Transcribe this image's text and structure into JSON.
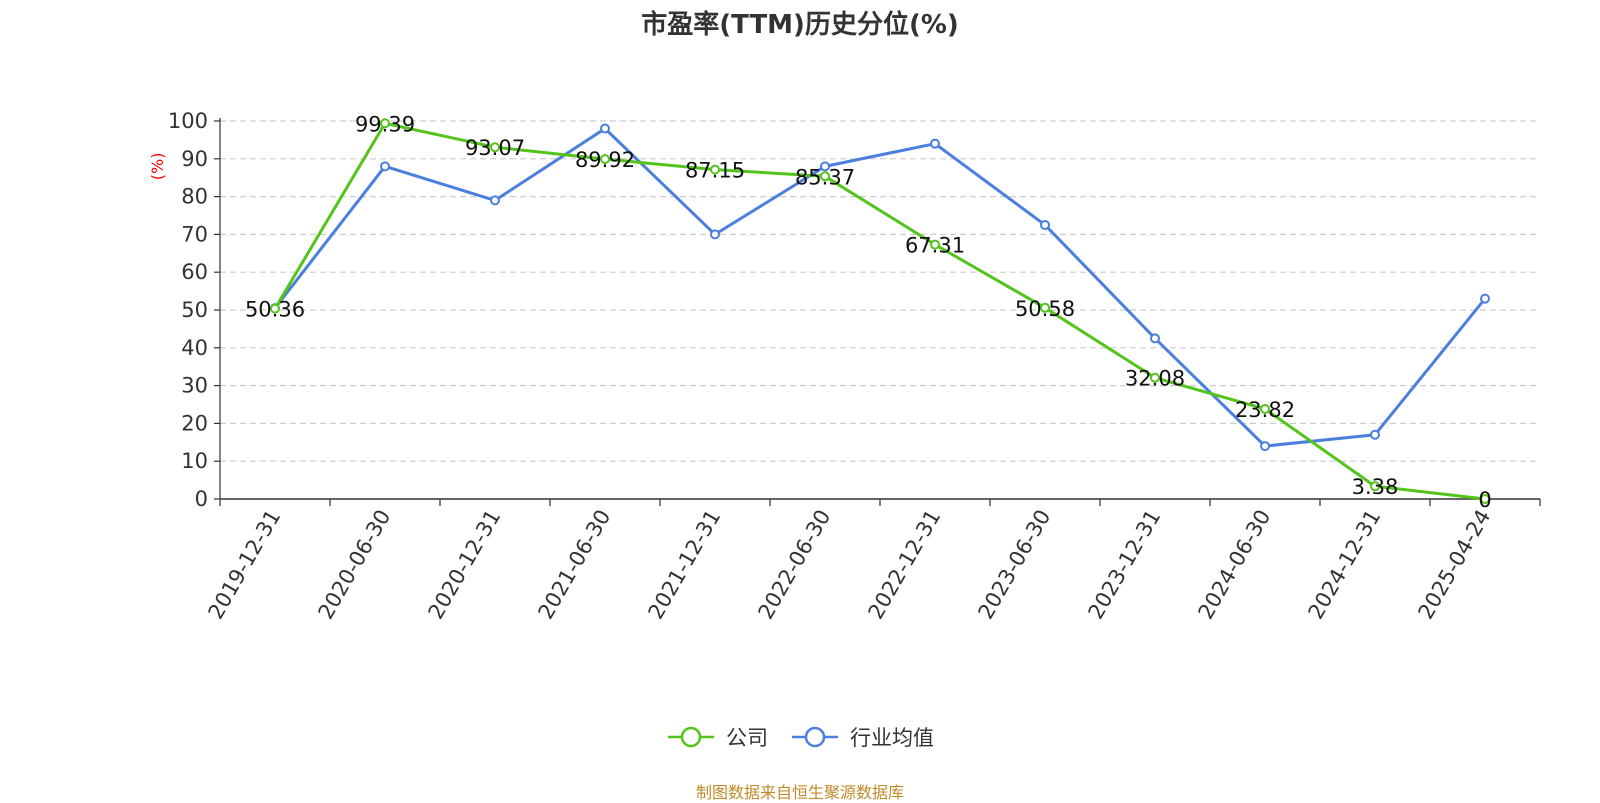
{
  "title": "市盈率(TTM)历史分位(%)",
  "source": "制图数据来自恒生聚源数据库",
  "colors": {
    "company": "#52c41a",
    "industry": "#4a7fde",
    "ylabel": "#ff0000",
    "grid": "#cccccc",
    "axis": "#333333"
  },
  "chart_data": {
    "type": "line",
    "title": "市盈率(TTM)历史分位(%)",
    "ylabel": "(%)",
    "xlabel": "",
    "ylim": [
      0,
      100
    ],
    "yticks": [
      0,
      10,
      20,
      30,
      40,
      50,
      60,
      70,
      80,
      90,
      100
    ],
    "grid": true,
    "legend_position": "bottom",
    "categories": [
      "2019-12-31",
      "2020-06-30",
      "2020-12-31",
      "2021-06-30",
      "2021-12-31",
      "2022-06-30",
      "2022-12-31",
      "2023-06-30",
      "2023-12-31",
      "2024-06-30",
      "2024-12-31",
      "2025-04-24"
    ],
    "series": [
      {
        "name": "公司",
        "color": "#52c41a",
        "show_labels": true,
        "values": [
          50.36,
          99.39,
          93.07,
          89.92,
          87.15,
          85.37,
          67.31,
          50.58,
          32.08,
          23.82,
          3.38,
          0
        ]
      },
      {
        "name": "行业均值",
        "color": "#4a7fde",
        "show_labels": false,
        "values": [
          50.5,
          88,
          79,
          98,
          70,
          88,
          94,
          72.5,
          42.5,
          14,
          17,
          53
        ]
      }
    ]
  }
}
